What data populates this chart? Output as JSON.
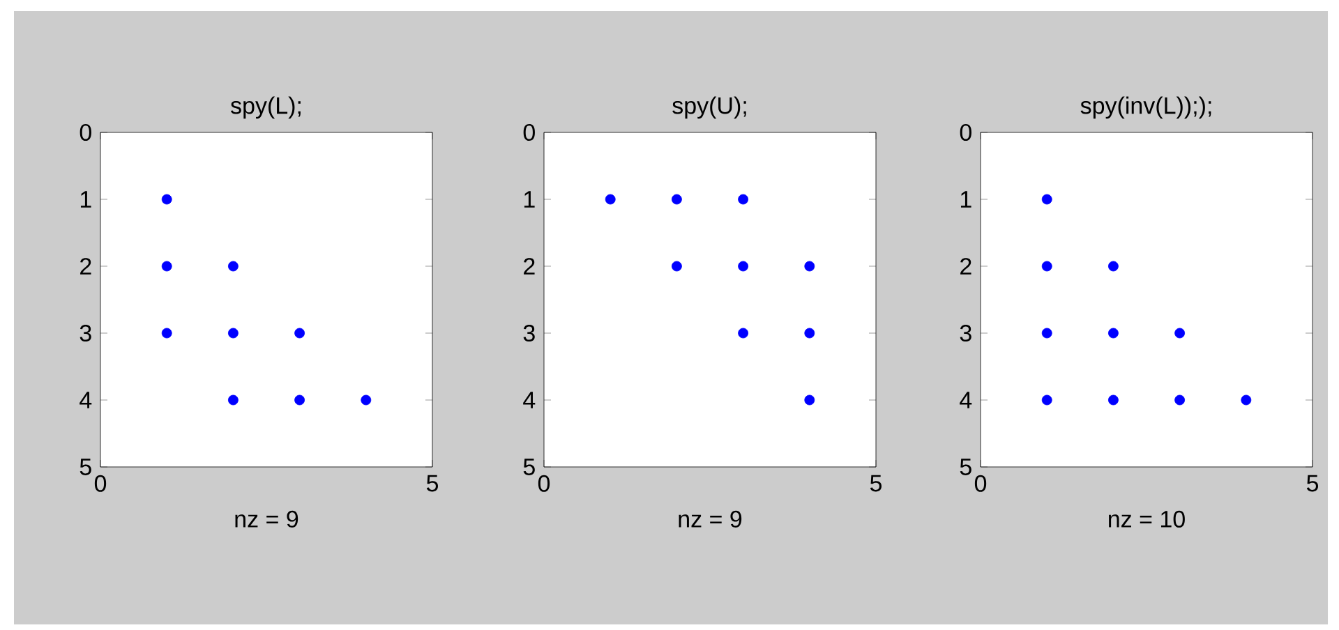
{
  "chart_data": [
    {
      "type": "scatter",
      "title": "spy(L);",
      "xlabel": "nz = 9",
      "color": "#0000ff",
      "marker": "circle",
      "x": [
        1,
        1,
        2,
        1,
        2,
        3,
        2,
        3,
        4
      ],
      "values": [
        1,
        2,
        2,
        3,
        3,
        3,
        4,
        4,
        4
      ],
      "xlim": [
        0,
        5
      ],
      "ylim": [
        5,
        0
      ],
      "xticks": [
        0,
        5
      ],
      "yticks": [
        0,
        1,
        2,
        3,
        4,
        5
      ]
    },
    {
      "type": "scatter",
      "title": "spy(U);",
      "xlabel": "nz = 9",
      "color": "#0000ff",
      "marker": "circle",
      "x": [
        1,
        2,
        3,
        2,
        3,
        4,
        3,
        4,
        4
      ],
      "values": [
        1,
        1,
        1,
        2,
        2,
        2,
        3,
        3,
        4
      ],
      "xlim": [
        0,
        5
      ],
      "ylim": [
        5,
        0
      ],
      "xticks": [
        0,
        5
      ],
      "yticks": [
        0,
        1,
        2,
        3,
        4,
        5
      ]
    },
    {
      "type": "scatter",
      "title": "spy(inv(L)););",
      "xlabel": "nz = 10",
      "color": "#0000ff",
      "marker": "circle",
      "x": [
        1,
        1,
        2,
        1,
        2,
        3,
        1,
        2,
        3,
        4
      ],
      "values": [
        1,
        2,
        2,
        3,
        3,
        3,
        4,
        4,
        4,
        4
      ],
      "xlim": [
        0,
        5
      ],
      "ylim": [
        5,
        0
      ],
      "xticks": [
        0,
        5
      ],
      "yticks": [
        0,
        1,
        2,
        3,
        4,
        5
      ]
    }
  ]
}
